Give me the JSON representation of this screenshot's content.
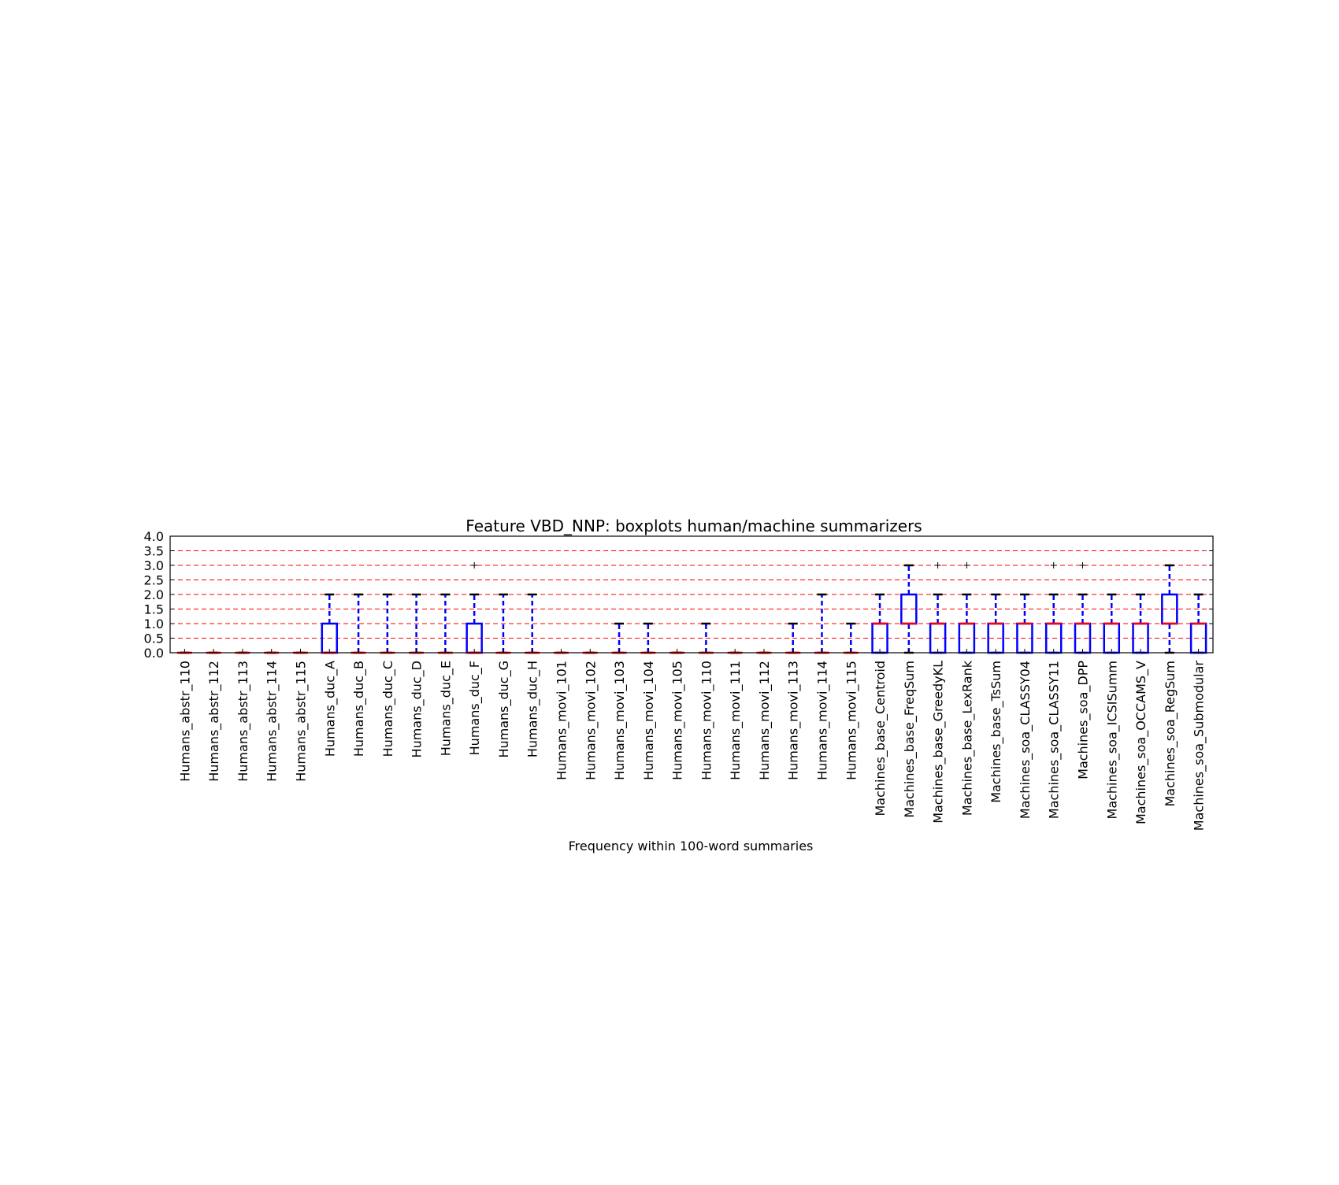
{
  "chart_data": {
    "type": "boxplot",
    "title": "Feature VBD_NNP: boxplots human/machine summarizers",
    "xlabel": "Frequency within 100-word summaries",
    "ylabel": "",
    "ylim": [
      0,
      4
    ],
    "yticks": [
      "0.0",
      "0.5",
      "1.0",
      "1.5",
      "2.0",
      "2.5",
      "3.0",
      "3.5",
      "4.0"
    ],
    "grid": true,
    "colors": {
      "box": "#0000ff",
      "median": "#ff0000",
      "whisker": "#0000ff",
      "cap": "#000000",
      "grid": "#ff0000",
      "flier": "#000000"
    },
    "categories": [
      "Humans_abstr_110",
      "Humans_abstr_112",
      "Humans_abstr_113",
      "Humans_abstr_114",
      "Humans_abstr_115",
      "Humans_duc_A",
      "Humans_duc_B",
      "Humans_duc_C",
      "Humans_duc_D",
      "Humans_duc_E",
      "Humans_duc_F",
      "Humans_duc_G",
      "Humans_duc_H",
      "Humans_movi_101",
      "Humans_movi_102",
      "Humans_movi_103",
      "Humans_movi_104",
      "Humans_movi_105",
      "Humans_movi_110",
      "Humans_movi_111",
      "Humans_movi_112",
      "Humans_movi_113",
      "Humans_movi_114",
      "Humans_movi_115",
      "Machines_base_Centroid",
      "Machines_base_FreqSum",
      "Machines_base_GreedyKL",
      "Machines_base_LexRank",
      "Machines_base_TsSum",
      "Machines_soa_CLASSY04",
      "Machines_soa_CLASSY11",
      "Machines_soa_DPP",
      "Machines_soa_ICSISumm",
      "Machines_soa_OCCAMS_V",
      "Machines_soa_RegSum",
      "Machines_soa_Submodular"
    ],
    "boxes": [
      {
        "whislo": 0,
        "q1": 0,
        "med": 0,
        "q3": 0,
        "whishi": 0,
        "fliers": []
      },
      {
        "whislo": 0,
        "q1": 0,
        "med": 0,
        "q3": 0,
        "whishi": 0,
        "fliers": []
      },
      {
        "whislo": 0,
        "q1": 0,
        "med": 0,
        "q3": 0,
        "whishi": 0,
        "fliers": []
      },
      {
        "whislo": 0,
        "q1": 0,
        "med": 0,
        "q3": 0,
        "whishi": 0,
        "fliers": []
      },
      {
        "whislo": 0,
        "q1": 0,
        "med": 0,
        "q3": 0,
        "whishi": 0,
        "fliers": []
      },
      {
        "whislo": 0,
        "q1": 0,
        "med": 0,
        "q3": 1,
        "whishi": 2,
        "fliers": []
      },
      {
        "whislo": 0,
        "q1": 0,
        "med": 0,
        "q3": 0,
        "whishi": 2,
        "fliers": []
      },
      {
        "whislo": 0,
        "q1": 0,
        "med": 0,
        "q3": 0,
        "whishi": 2,
        "fliers": []
      },
      {
        "whislo": 0,
        "q1": 0,
        "med": 0,
        "q3": 0,
        "whishi": 2,
        "fliers": []
      },
      {
        "whislo": 0,
        "q1": 0,
        "med": 0,
        "q3": 0,
        "whishi": 2,
        "fliers": []
      },
      {
        "whislo": 0,
        "q1": 0,
        "med": 0,
        "q3": 1,
        "whishi": 2,
        "fliers": [
          3
        ]
      },
      {
        "whislo": 0,
        "q1": 0,
        "med": 0,
        "q3": 0,
        "whishi": 2,
        "fliers": []
      },
      {
        "whislo": 0,
        "q1": 0,
        "med": 0,
        "q3": 0,
        "whishi": 2,
        "fliers": []
      },
      {
        "whislo": 0,
        "q1": 0,
        "med": 0,
        "q3": 0,
        "whishi": 0,
        "fliers": []
      },
      {
        "whislo": 0,
        "q1": 0,
        "med": 0,
        "q3": 0,
        "whishi": 0,
        "fliers": []
      },
      {
        "whislo": 0,
        "q1": 0,
        "med": 0,
        "q3": 0,
        "whishi": 1,
        "fliers": []
      },
      {
        "whislo": 0,
        "q1": 0,
        "med": 0,
        "q3": 0,
        "whishi": 1,
        "fliers": []
      },
      {
        "whislo": 0,
        "q1": 0,
        "med": 0,
        "q3": 0,
        "whishi": 0,
        "fliers": []
      },
      {
        "whislo": 0,
        "q1": 0,
        "med": 0,
        "q3": 0,
        "whishi": 1,
        "fliers": []
      },
      {
        "whislo": 0,
        "q1": 0,
        "med": 0,
        "q3": 0,
        "whishi": 0,
        "fliers": []
      },
      {
        "whislo": 0,
        "q1": 0,
        "med": 0,
        "q3": 0,
        "whishi": 0,
        "fliers": []
      },
      {
        "whislo": 0,
        "q1": 0,
        "med": 0,
        "q3": 0,
        "whishi": 1,
        "fliers": []
      },
      {
        "whislo": 0,
        "q1": 0,
        "med": 0,
        "q3": 0,
        "whishi": 2,
        "fliers": []
      },
      {
        "whislo": 0,
        "q1": 0,
        "med": 0,
        "q3": 0,
        "whishi": 1,
        "fliers": []
      },
      {
        "whislo": 0,
        "q1": 0,
        "med": 1,
        "q3": 1,
        "whishi": 2,
        "fliers": []
      },
      {
        "whislo": 0,
        "q1": 1,
        "med": 1,
        "q3": 2,
        "whishi": 3,
        "fliers": []
      },
      {
        "whislo": 0,
        "q1": 0,
        "med": 1,
        "q3": 1,
        "whishi": 2,
        "fliers": [
          3
        ]
      },
      {
        "whislo": 0,
        "q1": 0,
        "med": 1,
        "q3": 1,
        "whishi": 2,
        "fliers": [
          3
        ]
      },
      {
        "whislo": 0,
        "q1": 0,
        "med": 1,
        "q3": 1,
        "whishi": 2,
        "fliers": []
      },
      {
        "whislo": 0,
        "q1": 0,
        "med": 1,
        "q3": 1,
        "whishi": 2,
        "fliers": []
      },
      {
        "whislo": 0,
        "q1": 0,
        "med": 1,
        "q3": 1,
        "whishi": 2,
        "fliers": [
          3
        ]
      },
      {
        "whislo": 0,
        "q1": 0,
        "med": 1,
        "q3": 1,
        "whishi": 2,
        "fliers": [
          3
        ]
      },
      {
        "whislo": 0,
        "q1": 0,
        "med": 1,
        "q3": 1,
        "whishi": 2,
        "fliers": []
      },
      {
        "whislo": 0,
        "q1": 0,
        "med": 1,
        "q3": 1,
        "whishi": 2,
        "fliers": []
      },
      {
        "whislo": 0,
        "q1": 1,
        "med": 1,
        "q3": 2,
        "whishi": 3,
        "fliers": []
      },
      {
        "whislo": 0,
        "q1": 0,
        "med": 1,
        "q3": 1,
        "whishi": 2,
        "fliers": []
      }
    ]
  }
}
